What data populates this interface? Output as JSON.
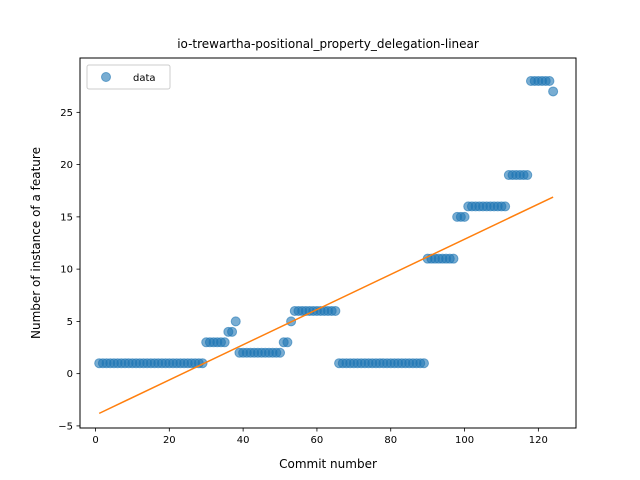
{
  "chart_data": {
    "type": "scatter",
    "title": "io-trewartha-positional_property_delegation-linear",
    "xlabel": "Commit number",
    "ylabel": "Number of instance of a feature",
    "xlim": [
      -4.2,
      130.2
    ],
    "ylim": [
      -5.2,
      30.2
    ],
    "xticks": [
      0,
      20,
      40,
      60,
      80,
      100,
      120
    ],
    "yticks": [
      -5,
      0,
      5,
      10,
      15,
      20,
      25
    ],
    "legend": {
      "placement": "top-left",
      "entries": [
        "data"
      ]
    },
    "colors": {
      "data": "#1f77b4",
      "fit": "#ff7f0e"
    },
    "series": [
      {
        "name": "data",
        "kind": "scatter",
        "x": [
          1,
          2,
          3,
          4,
          5,
          6,
          7,
          8,
          9,
          10,
          11,
          12,
          13,
          14,
          15,
          16,
          17,
          18,
          19,
          20,
          21,
          22,
          23,
          24,
          25,
          26,
          27,
          28,
          29,
          30,
          31,
          32,
          33,
          34,
          35,
          36,
          37,
          38,
          39,
          40,
          41,
          42,
          43,
          44,
          45,
          46,
          47,
          48,
          49,
          50,
          51,
          52,
          53,
          54,
          55,
          56,
          57,
          58,
          59,
          60,
          61,
          62,
          63,
          64,
          65,
          66,
          67,
          68,
          69,
          70,
          71,
          72,
          73,
          74,
          75,
          76,
          77,
          78,
          79,
          80,
          81,
          82,
          83,
          84,
          85,
          86,
          87,
          88,
          89,
          90,
          91,
          92,
          93,
          94,
          95,
          96,
          97,
          98,
          99,
          100,
          101,
          102,
          103,
          104,
          105,
          106,
          107,
          108,
          109,
          110,
          111,
          112,
          113,
          114,
          115,
          116,
          117,
          118,
          119,
          120,
          121,
          122,
          123,
          124
        ],
        "y": [
          1,
          1,
          1,
          1,
          1,
          1,
          1,
          1,
          1,
          1,
          1,
          1,
          1,
          1,
          1,
          1,
          1,
          1,
          1,
          1,
          1,
          1,
          1,
          1,
          1,
          1,
          1,
          1,
          1,
          3,
          3,
          3,
          3,
          3,
          3,
          4,
          4,
          5,
          2,
          2,
          2,
          2,
          2,
          2,
          2,
          2,
          2,
          2,
          2,
          2,
          3,
          3,
          5,
          6,
          6,
          6,
          6,
          6,
          6,
          6,
          6,
          6,
          6,
          6,
          6,
          1,
          1,
          1,
          1,
          1,
          1,
          1,
          1,
          1,
          1,
          1,
          1,
          1,
          1,
          1,
          1,
          1,
          1,
          1,
          1,
          1,
          1,
          1,
          1,
          11,
          11,
          11,
          11,
          11,
          11,
          11,
          11,
          15,
          15,
          15,
          16,
          16,
          16,
          16,
          16,
          16,
          16,
          16,
          16,
          16,
          16,
          19,
          19,
          19,
          19,
          19,
          19,
          28,
          28,
          28,
          28,
          28,
          28,
          27
        ]
      },
      {
        "name": "",
        "kind": "line",
        "x": [
          1,
          124
        ],
        "y": [
          -3.8,
          16.9
        ]
      }
    ]
  }
}
